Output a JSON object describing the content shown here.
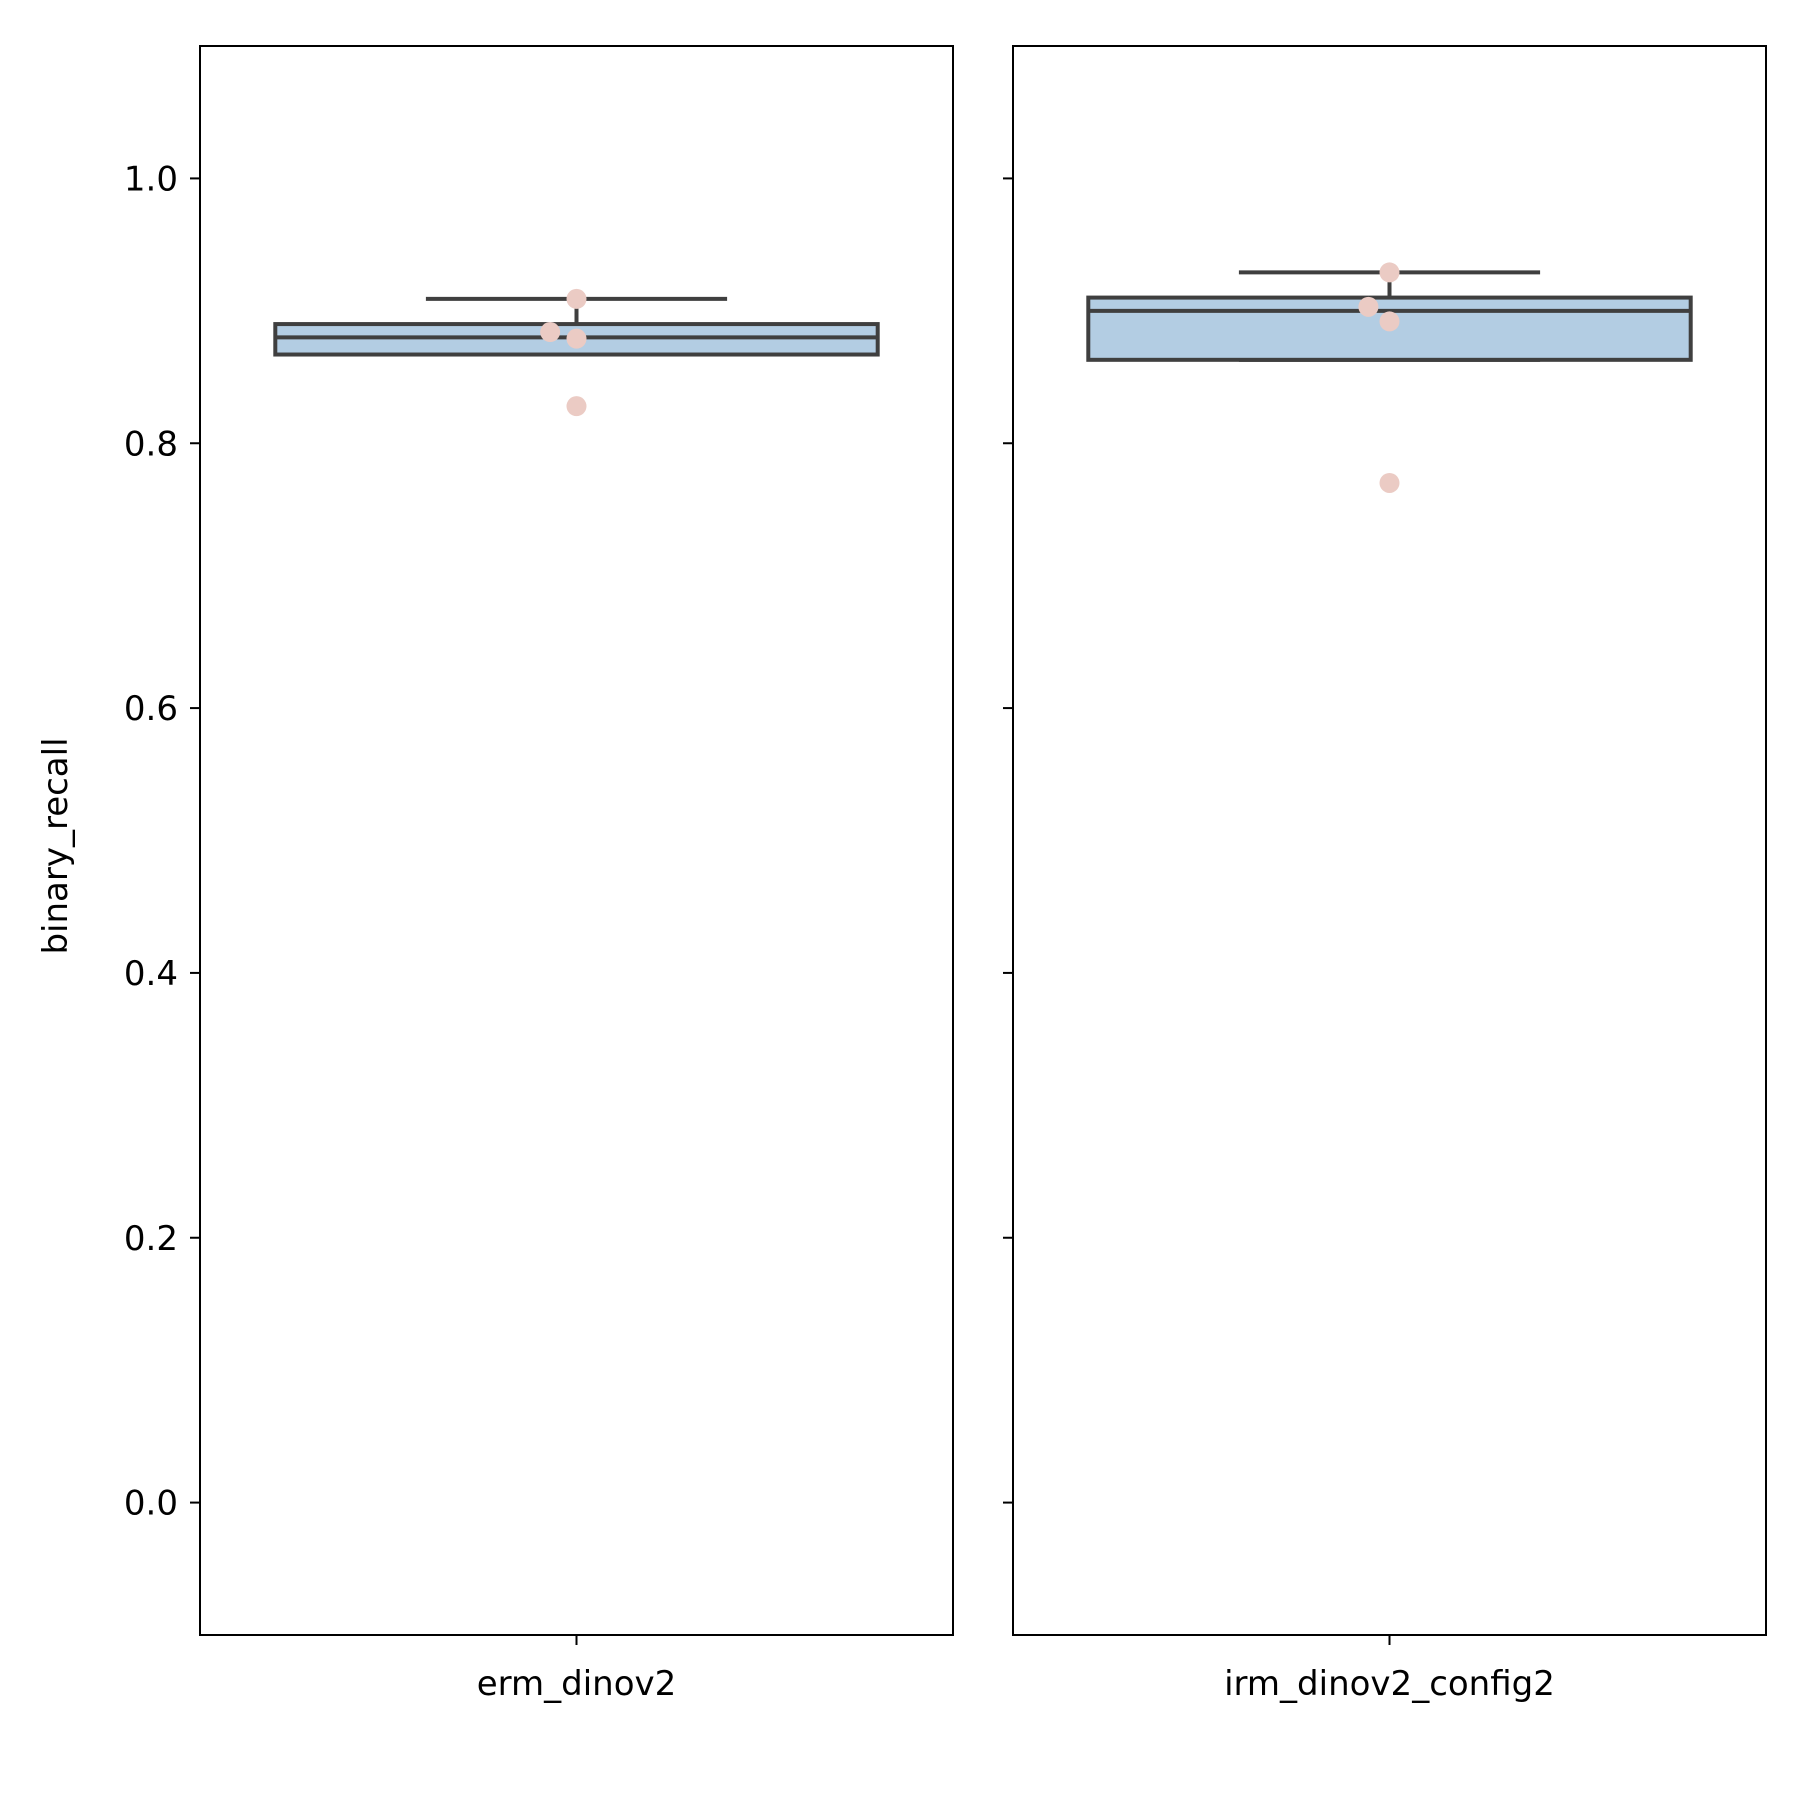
{
  "chart_data": {
    "type": "box",
    "ylabel": "binary_recall",
    "ylim": [
      -0.1,
      1.1
    ],
    "yticks": [
      0.0,
      0.2,
      0.4,
      0.6,
      0.8,
      1.0
    ],
    "ytick_labels": [
      "0.0",
      "0.2",
      "0.4",
      "0.6",
      "0.8",
      "1.0"
    ],
    "colors": {
      "box_fill": "#b3cde3",
      "box_edge": "#3f3f3f",
      "point": "#ebcbc4",
      "axes": "#000000"
    },
    "panels": [
      {
        "category": "erm_dinov2",
        "box": {
          "q1": 0.867,
          "median": 0.88,
          "q3": 0.89,
          "whisker_low": 0.867,
          "whisker_high": 0.909
        },
        "points": [
          {
            "x_jitter": 0.0,
            "y": 0.909
          },
          {
            "x_jitter": -0.035,
            "y": 0.884
          },
          {
            "x_jitter": 0.0,
            "y": 0.879
          },
          {
            "x_jitter": 0.0,
            "y": 0.828
          }
        ]
      },
      {
        "category": "irm_dinov2_config2",
        "box": {
          "q1": 0.863,
          "median": 0.9,
          "q3": 0.91,
          "whisker_low": 0.863,
          "whisker_high": 0.929
        },
        "points": [
          {
            "x_jitter": 0.0,
            "y": 0.929
          },
          {
            "x_jitter": -0.028,
            "y": 0.903
          },
          {
            "x_jitter": 0.0,
            "y": 0.892
          },
          {
            "x_jitter": 0.0,
            "y": 0.77
          }
        ]
      }
    ]
  }
}
